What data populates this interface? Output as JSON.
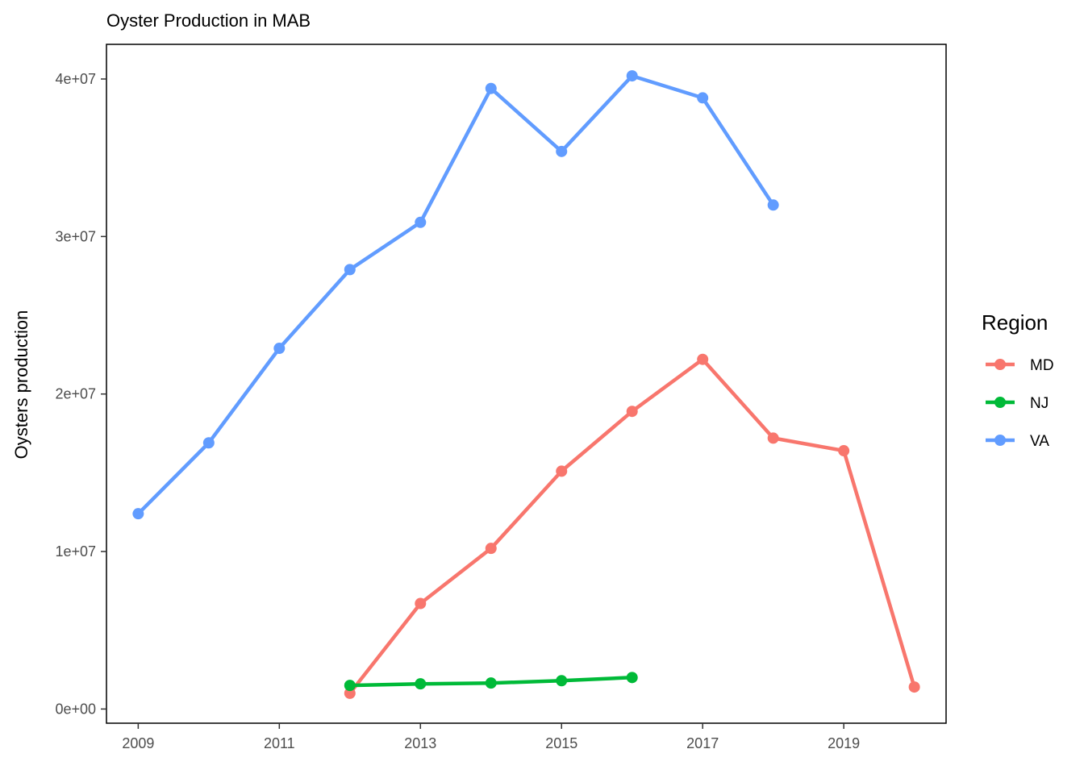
{
  "chart_data": {
    "type": "line",
    "title": "Oyster Production in MAB",
    "xlabel": "",
    "ylabel": "Oysters production",
    "x_ticks": [
      2009,
      2011,
      2013,
      2015,
      2017,
      2019
    ],
    "y_ticks": [
      0,
      10000000,
      20000000,
      30000000,
      40000000
    ],
    "y_tick_labels": [
      "0e+00",
      "1e+07",
      "2e+07",
      "3e+07",
      "4e+07"
    ],
    "xlim": [
      2008.55,
      2020.45
    ],
    "ylim": [
      -900000,
      42200000
    ],
    "grid": false,
    "legend": {
      "title": "Region",
      "position": "right"
    },
    "series": [
      {
        "name": "MD",
        "color": "#F8766D",
        "x": [
          2012,
          2013,
          2014,
          2015,
          2016,
          2017,
          2018,
          2019,
          2020
        ],
        "values": [
          1000000,
          6700000,
          10200000,
          15100000,
          18900000,
          22200000,
          17200000,
          16400000,
          1400000
        ]
      },
      {
        "name": "NJ",
        "color": "#00BA38",
        "x": [
          2012,
          2013,
          2014,
          2015,
          2016
        ],
        "values": [
          1500000,
          1600000,
          1650000,
          1800000,
          2000000
        ]
      },
      {
        "name": "VA",
        "color": "#619CFF",
        "x": [
          2009,
          2010,
          2011,
          2012,
          2013,
          2014,
          2015,
          2016,
          2017,
          2018
        ],
        "values": [
          12400000,
          16900000,
          22900000,
          27900000,
          30900000,
          39400000,
          35400000,
          40200000,
          38800000,
          32000000
        ]
      }
    ]
  }
}
